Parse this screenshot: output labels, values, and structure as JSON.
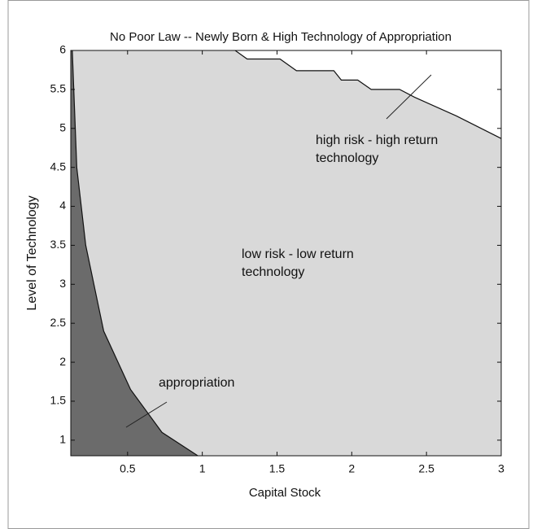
{
  "chart_data": {
    "type": "region",
    "title": "No Poor Law -- Newly Born & High Technology of Appropriation",
    "x_label": "Capital Stock",
    "y_label": "Level of Technology",
    "xlim": [
      0.12,
      3
    ],
    "ylim": [
      0.8,
      6
    ],
    "xticks": [
      0.5,
      1,
      1.5,
      2,
      2.5,
      3
    ],
    "yticks": [
      1,
      1.5,
      2,
      2.5,
      3,
      3.5,
      4,
      4.5,
      5,
      5.5,
      6
    ],
    "background_color": "#d9d9d9",
    "boundaries": [
      {
        "x": [
          0.13,
          0.16,
          0.22,
          0.34,
          0.52,
          0.73,
          0.97
        ],
        "y": [
          6,
          4.5,
          3.5,
          2.4,
          1.65,
          1.1,
          0.8
        ],
        "color": "#6b6b6b",
        "side": "left"
      },
      {
        "x": [
          1.22,
          1.3,
          1.52,
          1.63,
          1.88,
          1.93,
          2.04,
          2.13,
          2.32,
          2.42,
          2.7,
          3
        ],
        "y": [
          6,
          5.89,
          5.89,
          5.74,
          5.74,
          5.62,
          5.62,
          5.5,
          5.5,
          5.4,
          5.16,
          4.87
        ],
        "color": "#ffffff",
        "side": "above"
      }
    ],
    "annotations": [
      {
        "lines": [
          "appropriation"
        ]
      },
      {
        "lines": [
          "low risk - low return",
          "technology"
        ]
      },
      {
        "lines": [
          "high risk - high return",
          "technology"
        ]
      }
    ]
  }
}
